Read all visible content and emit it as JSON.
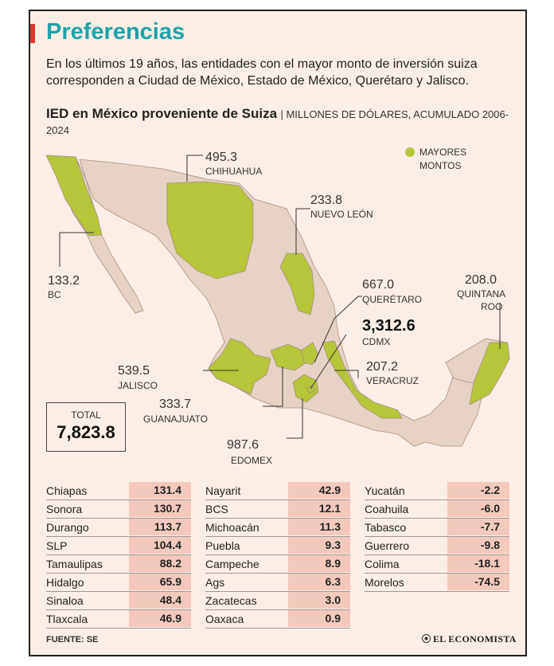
{
  "header": {
    "title": "Preferencias",
    "intro": "En los últimos 19 años, las entidades con el mayor monto de inversión suiza corresponden a Ciudad de México, Estado de México, Querétaro y Jalisco."
  },
  "chart_data": {
    "type": "map",
    "title": "IED en México proveniente de Suiza",
    "unit": "| MILLONES DE DÓLARES, ACUMULADO 2006-2024",
    "legend": {
      "label": "MAYORES MONTOS",
      "color": "#b5c63a"
    },
    "highlighted": [
      {
        "state": "CHIHUAHUA",
        "value": "495.3"
      },
      {
        "state": "NUEVO LEÓN",
        "value": "233.8"
      },
      {
        "state": "BC",
        "value": "133.2"
      },
      {
        "state": "QUERÉTARO",
        "value": "667.0"
      },
      {
        "state": "QUINTANA ROO",
        "value": "208.0"
      },
      {
        "state": "CDMX",
        "value": "3,312.6"
      },
      {
        "state": "JALISCO",
        "value": "539.5"
      },
      {
        "state": "VERACRUZ",
        "value": "207.2"
      },
      {
        "state": "GUANAJUATO",
        "value": "333.7"
      },
      {
        "state": "EDOMEX",
        "value": "987.6"
      }
    ],
    "total": {
      "label": "TOTAL",
      "value": "7,823.8"
    },
    "table": [
      [
        {
          "state": "Chiapas",
          "value": "131.4"
        },
        {
          "state": "Sonora",
          "value": "130.7"
        },
        {
          "state": "Durango",
          "value": "113.7"
        },
        {
          "state": "SLP",
          "value": "104.4"
        },
        {
          "state": "Tamaulipas",
          "value": "88.2"
        },
        {
          "state": "Hidalgo",
          "value": "65.9"
        },
        {
          "state": "Sinaloa",
          "value": "48.4"
        },
        {
          "state": "Tlaxcala",
          "value": "46.9"
        }
      ],
      [
        {
          "state": "Nayarit",
          "value": "42.9"
        },
        {
          "state": "BCS",
          "value": "12.1"
        },
        {
          "state": "Michoacán",
          "value": "11.3"
        },
        {
          "state": "Puebla",
          "value": "9.3"
        },
        {
          "state": "Campeche",
          "value": "8.9"
        },
        {
          "state": "Ags",
          "value": "6.3"
        },
        {
          "state": "Zacatecas",
          "value": "3.0"
        },
        {
          "state": "Oaxaca",
          "value": "0.9"
        }
      ],
      [
        {
          "state": "Yucatán",
          "value": "-2.2"
        },
        {
          "state": "Coahuila",
          "value": "-6.0"
        },
        {
          "state": "Tabasco",
          "value": "-7.7"
        },
        {
          "state": "Guerrero",
          "value": "-9.8"
        },
        {
          "state": "Colima",
          "value": "-18.1"
        },
        {
          "state": "Morelos",
          "value": "-74.5"
        }
      ]
    ],
    "colors": {
      "base": "#e6d3c6",
      "highlight": "#b5c63a",
      "row_fill": "#f4c9bd"
    }
  },
  "footer": {
    "source": "FUENTE: SE",
    "brand": "EL ECONOMISTA"
  }
}
